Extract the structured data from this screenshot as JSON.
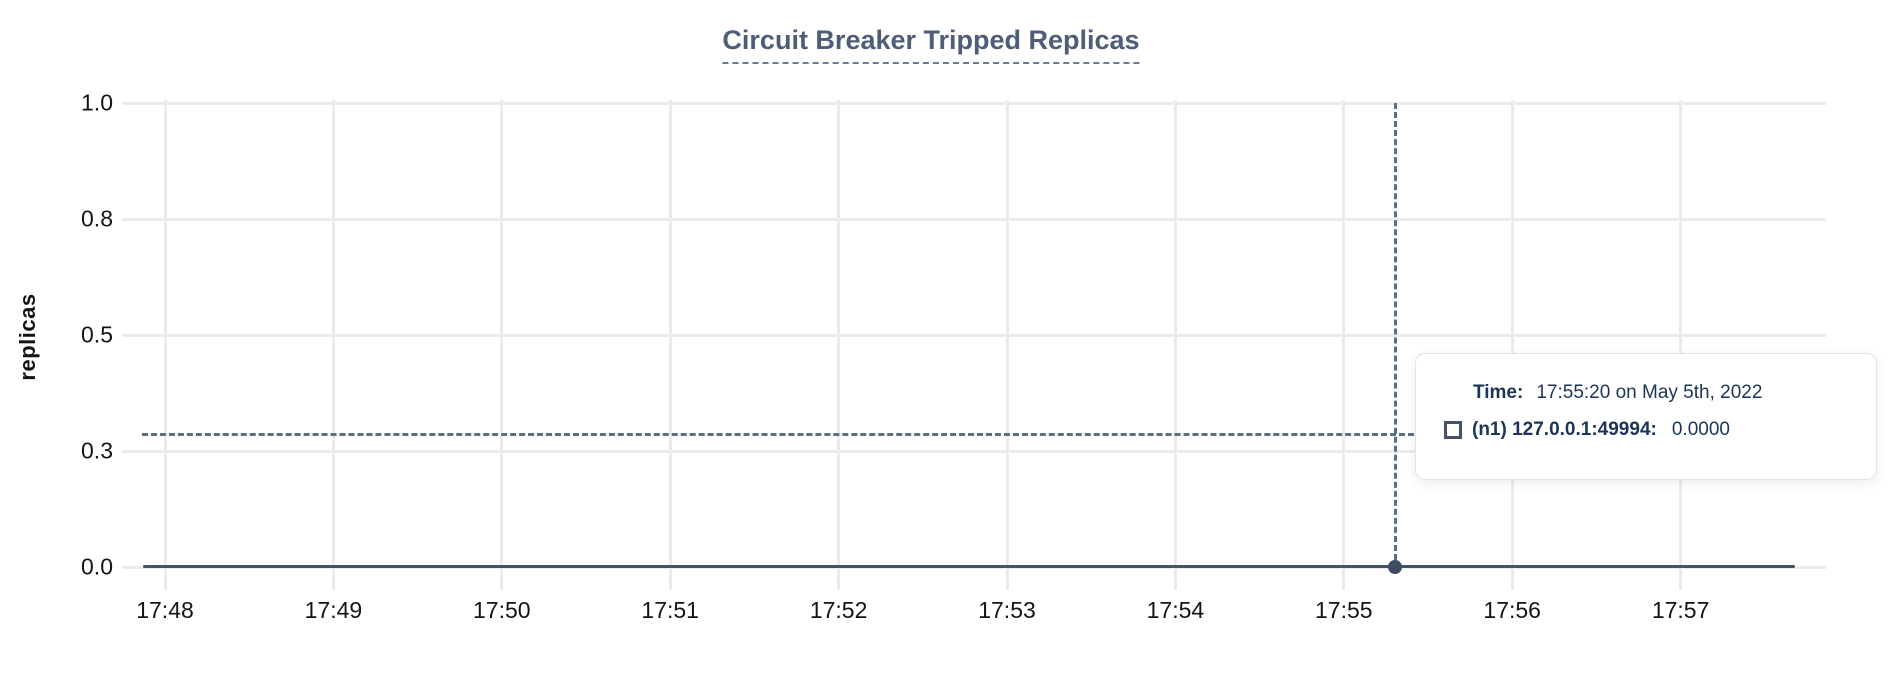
{
  "chart": {
    "title": "Circuit Breaker Tripped Replicas",
    "y_axis_label": "replicas",
    "x_tick_labels": [
      "17:48",
      "17:49",
      "17:50",
      "17:51",
      "17:52",
      "17:53",
      "17:54",
      "17:55",
      "17:56",
      "17:57"
    ],
    "y_tick_labels": [
      "1.0",
      "0.8",
      "0.5",
      "0.3",
      "0.0"
    ]
  },
  "tooltip": {
    "time_label": "Time:",
    "time_value": "17:55:20 on May 5th, 2022",
    "series_name": "(n1) 127.0.0.1:49994:",
    "series_value": "0.0000"
  },
  "colors": {
    "title_text": "#4e5d78",
    "series_line": "#44536a",
    "hover_dot": "#3e4c63",
    "crosshair": "#5d7083",
    "gridline": "#ebebeb",
    "axis_text": "#141414",
    "tooltip_text": "#1c3557"
  },
  "chart_data": {
    "type": "line",
    "title": "Circuit Breaker Tripped Replicas",
    "xlabel": "",
    "ylabel": "replicas",
    "x": [
      "17:48",
      "17:49",
      "17:50",
      "17:51",
      "17:52",
      "17:53",
      "17:54",
      "17:55",
      "17:56",
      "17:57"
    ],
    "series": [
      {
        "name": "(n1) 127.0.0.1:49994",
        "color": "#44536a",
        "values": [
          0,
          0,
          0,
          0,
          0,
          0,
          0,
          0,
          0,
          0
        ]
      }
    ],
    "ylim": [
      0.0,
      1.0
    ],
    "y_ticks": [
      0.0,
      0.25,
      0.5,
      0.75,
      1.0
    ],
    "y_tick_display": [
      "0.0",
      "0.3",
      "0.5",
      "0.8",
      "1.0"
    ],
    "grid": true,
    "legend_position": "none",
    "hover_point": {
      "time": "17:55:20 on May 5th, 2022",
      "series": "(n1) 127.0.0.1:49994",
      "value": 0.0,
      "value_display": "0.0000"
    }
  }
}
